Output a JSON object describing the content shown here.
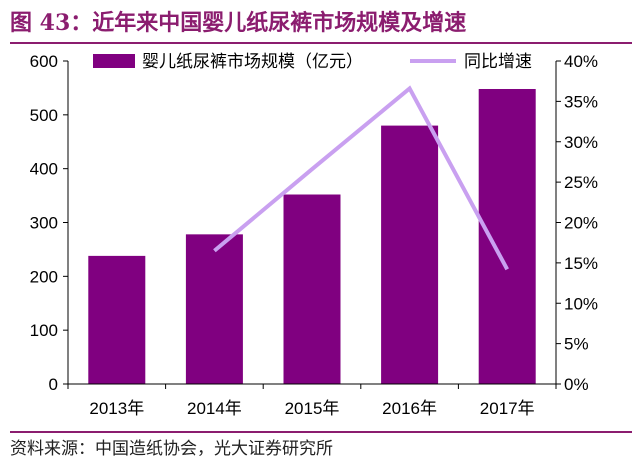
{
  "figure": {
    "title": "图 43：近年来中国婴儿纸尿裤市场规模及增速",
    "source": "资料来源：中国造纸协会，光大证券研究所"
  },
  "chart_data": {
    "type": "bar",
    "categories": [
      "2013年",
      "2014年",
      "2015年",
      "2016年",
      "2017年"
    ],
    "series": [
      {
        "name": "婴儿纸尿裤市场规模（亿元）",
        "type": "bar",
        "axis": "left",
        "values": [
          238,
          278,
          352,
          480,
          548
        ],
        "color": "#800080"
      },
      {
        "name": "同比增速",
        "type": "line",
        "axis": "right",
        "values": [
          null,
          0.165,
          0.266,
          0.366,
          0.142
        ],
        "color": "#c9a0f0"
      }
    ],
    "y_left": {
      "min": 0,
      "max": 600,
      "ticks": [
        "0",
        "100",
        "200",
        "300",
        "400",
        "500",
        "600"
      ]
    },
    "y_right": {
      "min": 0,
      "max": 0.4,
      "ticks": [
        "0%",
        "5%",
        "10%",
        "15%",
        "20%",
        "25%",
        "30%",
        "35%",
        "40%"
      ]
    },
    "legend_position": "top",
    "grid": false
  }
}
